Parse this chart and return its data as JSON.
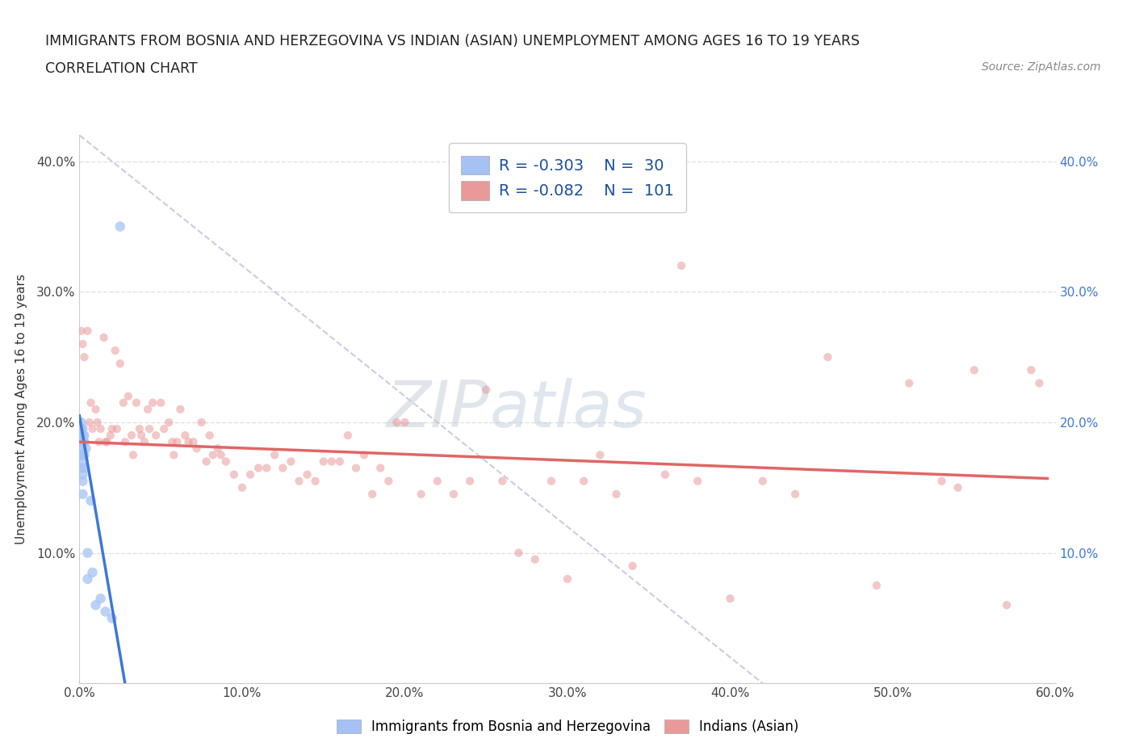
{
  "title_line1": "IMMIGRANTS FROM BOSNIA AND HERZEGOVINA VS INDIAN (ASIAN) UNEMPLOYMENT AMONG AGES 16 TO 19 YEARS",
  "title_line2": "CORRELATION CHART",
  "source_text": "Source: ZipAtlas.com",
  "ylabel": "Unemployment Among Ages 16 to 19 years",
  "xlim": [
    0.0,
    0.6
  ],
  "ylim": [
    0.0,
    0.42
  ],
  "xticks": [
    0.0,
    0.1,
    0.2,
    0.3,
    0.4,
    0.5,
    0.6
  ],
  "yticks": [
    0.0,
    0.1,
    0.2,
    0.3,
    0.4
  ],
  "xticklabels": [
    "0.0%",
    "10.0%",
    "20.0%",
    "30.0%",
    "40.0%",
    "50.0%",
    "60.0%"
  ],
  "yticklabels_left": [
    "",
    "10.0%",
    "20.0%",
    "30.0%",
    "40.0%"
  ],
  "yticklabels_right": [
    "",
    "10.0%",
    "20.0%",
    "30.0%",
    "40.0%"
  ],
  "background_color": "#ffffff",
  "blue_color": "#a4c2f4",
  "pink_color": "#ea9999",
  "blue_line_color": "#3c78d8",
  "pink_line_color": "#e06666",
  "R_blue": -0.303,
  "N_blue": 30,
  "R_pink": -0.082,
  "N_pink": 101,
  "legend_label_blue": "Immigrants from Bosnia and Herzegovina",
  "legend_label_pink": "Indians (Asian)",
  "blue_scatter_x": [
    0.001,
    0.001,
    0.001,
    0.001,
    0.001,
    0.001,
    0.001,
    0.002,
    0.002,
    0.002,
    0.002,
    0.002,
    0.002,
    0.002,
    0.002,
    0.002,
    0.003,
    0.003,
    0.003,
    0.003,
    0.004,
    0.005,
    0.005,
    0.007,
    0.008,
    0.01,
    0.013,
    0.016,
    0.02,
    0.025
  ],
  "blue_scatter_y": [
    0.195,
    0.19,
    0.2,
    0.185,
    0.175,
    0.18,
    0.165,
    0.195,
    0.185,
    0.19,
    0.175,
    0.185,
    0.17,
    0.16,
    0.155,
    0.145,
    0.19,
    0.185,
    0.175,
    0.165,
    0.18,
    0.1,
    0.08,
    0.14,
    0.085,
    0.06,
    0.065,
    0.055,
    0.05,
    0.35
  ],
  "pink_scatter_x": [
    0.001,
    0.002,
    0.003,
    0.005,
    0.006,
    0.007,
    0.008,
    0.01,
    0.011,
    0.012,
    0.013,
    0.015,
    0.016,
    0.017,
    0.019,
    0.02,
    0.022,
    0.023,
    0.025,
    0.027,
    0.028,
    0.03,
    0.032,
    0.033,
    0.035,
    0.037,
    0.038,
    0.04,
    0.042,
    0.043,
    0.045,
    0.047,
    0.05,
    0.052,
    0.055,
    0.057,
    0.058,
    0.06,
    0.062,
    0.065,
    0.067,
    0.07,
    0.072,
    0.075,
    0.078,
    0.08,
    0.082,
    0.085,
    0.087,
    0.09,
    0.095,
    0.1,
    0.105,
    0.11,
    0.115,
    0.12,
    0.125,
    0.13,
    0.135,
    0.14,
    0.145,
    0.15,
    0.155,
    0.16,
    0.165,
    0.17,
    0.175,
    0.18,
    0.185,
    0.19,
    0.195,
    0.2,
    0.21,
    0.22,
    0.23,
    0.24,
    0.25,
    0.26,
    0.27,
    0.28,
    0.29,
    0.3,
    0.31,
    0.32,
    0.33,
    0.34,
    0.36,
    0.37,
    0.38,
    0.4,
    0.42,
    0.44,
    0.46,
    0.49,
    0.51,
    0.53,
    0.54,
    0.55,
    0.57,
    0.585,
    0.59
  ],
  "pink_scatter_y": [
    0.27,
    0.26,
    0.25,
    0.27,
    0.2,
    0.215,
    0.195,
    0.21,
    0.2,
    0.185,
    0.195,
    0.265,
    0.185,
    0.185,
    0.19,
    0.195,
    0.255,
    0.195,
    0.245,
    0.215,
    0.185,
    0.22,
    0.19,
    0.175,
    0.215,
    0.195,
    0.19,
    0.185,
    0.21,
    0.195,
    0.215,
    0.19,
    0.215,
    0.195,
    0.2,
    0.185,
    0.175,
    0.185,
    0.21,
    0.19,
    0.185,
    0.185,
    0.18,
    0.2,
    0.17,
    0.19,
    0.175,
    0.18,
    0.175,
    0.17,
    0.16,
    0.15,
    0.16,
    0.165,
    0.165,
    0.175,
    0.165,
    0.17,
    0.155,
    0.16,
    0.155,
    0.17,
    0.17,
    0.17,
    0.19,
    0.165,
    0.175,
    0.145,
    0.165,
    0.155,
    0.2,
    0.2,
    0.145,
    0.155,
    0.145,
    0.155,
    0.225,
    0.155,
    0.1,
    0.095,
    0.155,
    0.08,
    0.155,
    0.175,
    0.145,
    0.09,
    0.16,
    0.32,
    0.155,
    0.065,
    0.155,
    0.145,
    0.25,
    0.075,
    0.23,
    0.155,
    0.15,
    0.24,
    0.06,
    0.24,
    0.23
  ],
  "grid_color": "#dddddd",
  "dot_size_blue": 80,
  "dot_size_pink": 55,
  "dot_alpha_blue": 0.75,
  "dot_alpha_pink": 0.55,
  "blue_trend_x": [
    0.0,
    0.028
  ],
  "blue_trend_y": [
    0.205,
    0.0
  ],
  "pink_trend_x": [
    0.0,
    0.595
  ],
  "pink_trend_y": [
    0.185,
    0.157
  ],
  "dash_line_x": [
    0.0,
    0.42
  ],
  "dash_line_y": [
    0.42,
    0.0
  ]
}
